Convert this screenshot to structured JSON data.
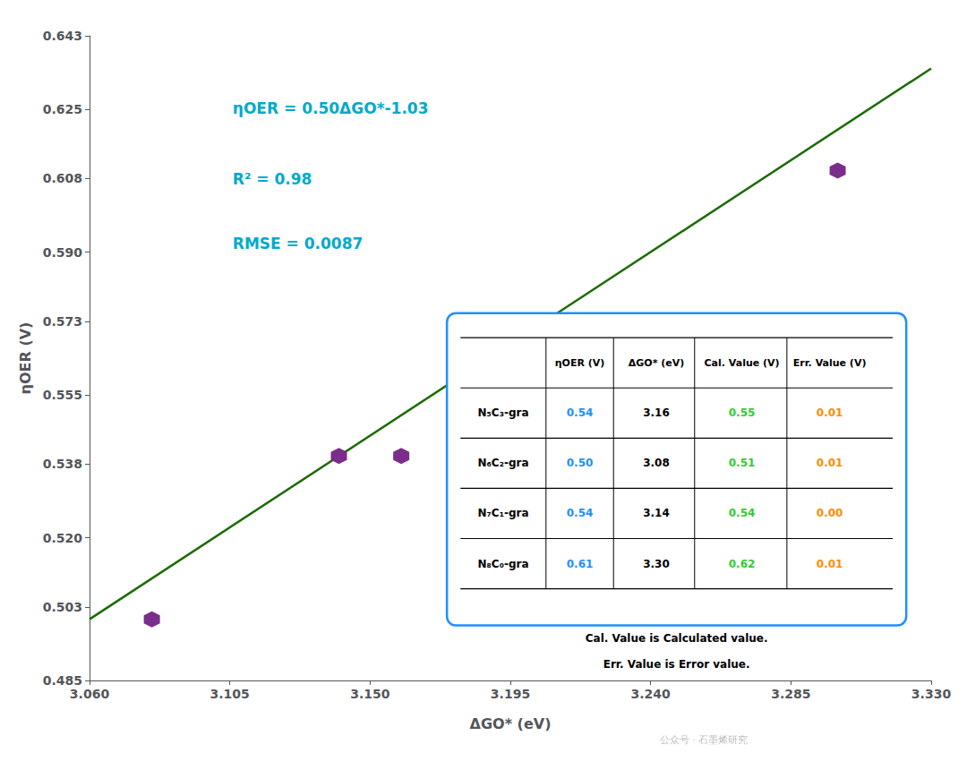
{
  "chart_data": {
    "type": "scatter",
    "xlabel": "ΔGO* (eV)",
    "ylabel": "ηOER (V)",
    "series": [
      {
        "type": "line",
        "color": "#1A6B00",
        "x": [
          3.06,
          3.33
        ],
        "values": [
          0.5,
          0.635
        ]
      },
      {
        "type": "scatter",
        "marker": "hexagon",
        "color": "#7B2D8B",
        "x": [
          3.08,
          3.14,
          3.16,
          3.3
        ],
        "values": [
          0.5,
          0.54,
          0.54,
          0.61
        ]
      }
    ],
    "xlim": [
      3.06,
      3.33
    ],
    "ylim": [
      0.485,
      0.643
    ],
    "xticks": [
      {
        "value": 3.06,
        "label": "3.060"
      },
      3.105,
      {
        "value": 3.15,
        "label": "3.150"
      },
      3.195,
      {
        "value": 3.24,
        "label": "3.240"
      },
      3.285,
      {
        "value": 3.33,
        "label": "3.330"
      }
    ],
    "yticks": [
      0.485,
      0.503,
      {
        "value": 0.52,
        "label": "0.520"
      },
      0.538,
      0.555,
      0.573,
      {
        "value": 0.59,
        "label": "0.590"
      },
      0.608,
      0.625,
      0.643
    ],
    "grid": false,
    "annotations": [
      {
        "text": "ηOER = 0.50ΔGO*-1.03",
        "color": "#00AACC"
      },
      {
        "text": "R² = 0.98",
        "color": "#00AACC"
      },
      {
        "text": "RMSE = 0.0087",
        "color": "#00AACC"
      }
    ],
    "table": {
      "color": "#1E90FF",
      "header": [
        "ηOER (V)",
        "ΔGO* (eV)",
        "Cal. Value (V)",
        "Err. Value (V)"
      ],
      "colors": [
        "#1E90FF",
        "black",
        "#32CD32",
        "#FF8C00"
      ],
      "rows": [
        [
          "N₅C₃-gra",
          "0.54",
          "3.16",
          "0.55",
          "0.01"
        ],
        [
          "N₆C₂-gra",
          "0.50",
          "3.08",
          "0.51",
          "0.01"
        ],
        [
          "N₇C₁-gra",
          "0.54",
          "3.14",
          "0.54",
          "0.00"
        ],
        [
          "N₈C₀-gra",
          "0.61",
          "3.30",
          "0.62",
          "0.01"
        ]
      ],
      "caption": [
        "Cal. Value is Calculated value.",
        "Err. Value is Error value."
      ]
    },
    "watermark": "公众号 · 石墨烯研究"
  }
}
